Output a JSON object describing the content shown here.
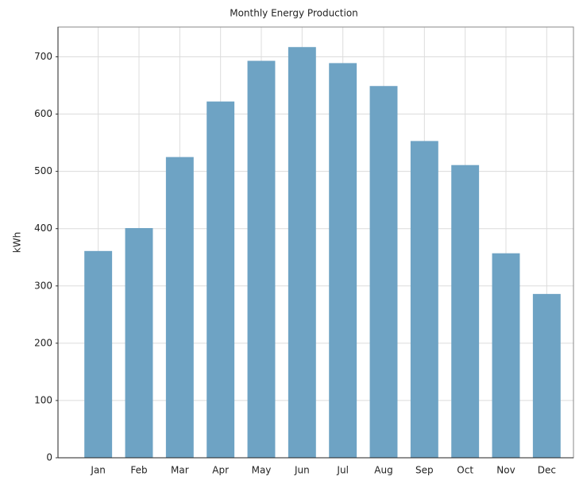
{
  "chart_data": {
    "type": "bar",
    "title": "Monthly Energy Production",
    "ylabel": "kWh",
    "categories": [
      "Jan",
      "Feb",
      "Mar",
      "Apr",
      "May",
      "Jun",
      "Jul",
      "Aug",
      "Sep",
      "Oct",
      "Nov",
      "Dec"
    ],
    "values": [
      361,
      401,
      525,
      622,
      693,
      717,
      689,
      649,
      553,
      511,
      357,
      286
    ],
    "color": "#6ea3c4",
    "ylim": [
      0,
      752
    ],
    "yticks": [
      0,
      100,
      200,
      300,
      400,
      500,
      600,
      700
    ],
    "grid": true
  }
}
